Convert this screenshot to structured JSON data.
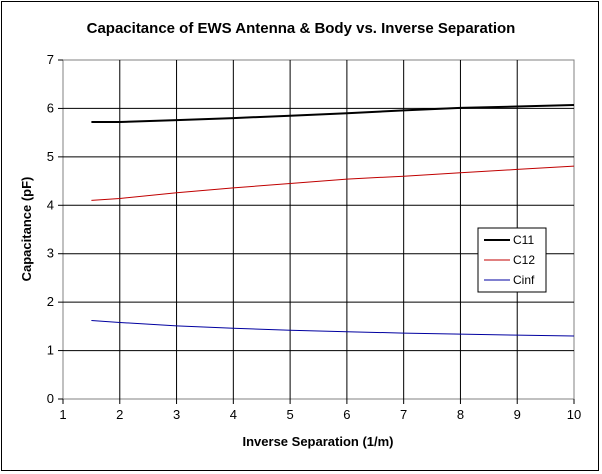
{
  "chart_data": {
    "type": "line",
    "title": "Capacitance of EWS Antenna & Body vs. Inverse Separation",
    "xlabel": "Inverse Separation (1/m)",
    "ylabel": "Capacitance (pF)",
    "xlim": [
      1,
      10
    ],
    "ylim": [
      0,
      7
    ],
    "x_ticks": [
      "1",
      "2",
      "3",
      "4",
      "5",
      "6",
      "7",
      "8",
      "9",
      "10"
    ],
    "y_ticks": [
      "0",
      "1",
      "2",
      "3",
      "4",
      "5",
      "6",
      "7"
    ],
    "grid": true,
    "legend_position": "right",
    "x": [
      1.5,
      2,
      3,
      4,
      5,
      6,
      7,
      8,
      9,
      10
    ],
    "series": [
      {
        "name": "C11",
        "color": "#000000",
        "values": [
          5.72,
          5.72,
          5.76,
          5.8,
          5.85,
          5.9,
          5.96,
          6.01,
          6.04,
          6.07
        ]
      },
      {
        "name": "C12",
        "color": "#c00000",
        "values": [
          4.1,
          4.14,
          4.26,
          4.36,
          4.45,
          4.54,
          4.6,
          4.67,
          4.74,
          4.81
        ]
      },
      {
        "name": "Cinf",
        "color": "#0000a0",
        "values": [
          1.62,
          1.58,
          1.51,
          1.46,
          1.42,
          1.39,
          1.36,
          1.34,
          1.32,
          1.3
        ]
      }
    ]
  }
}
